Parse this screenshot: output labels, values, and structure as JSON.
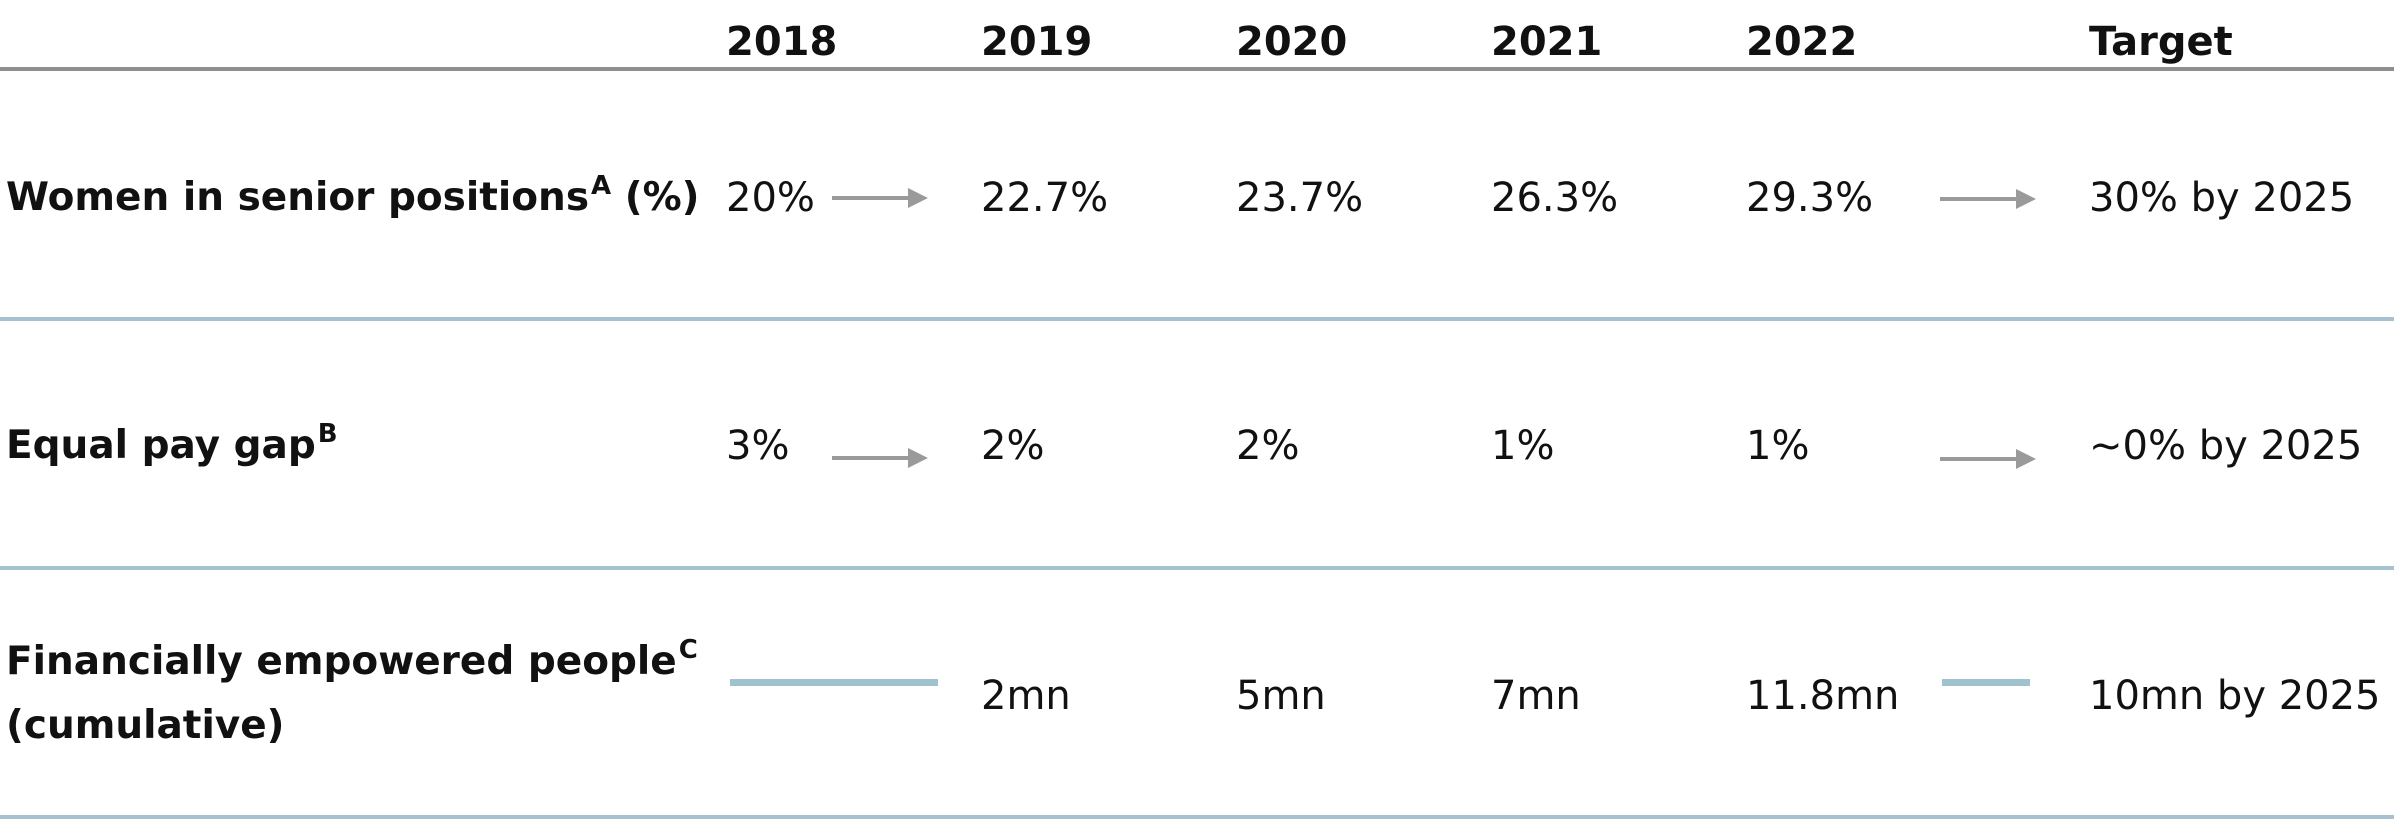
{
  "chart_data": {
    "type": "table",
    "columns": [
      "2018",
      "2019",
      "2020",
      "2021",
      "2022",
      "Target"
    ],
    "rows": [
      {
        "label": "Women in senior positions",
        "label_sup": "A",
        "label_suffix": " (%)",
        "label_line2": "",
        "values": [
          "20%",
          "22.7%",
          "23.7%",
          "26.3%",
          "29.3%"
        ],
        "target": "30% by 2025"
      },
      {
        "label": "Equal pay gap",
        "label_sup": "B",
        "label_suffix": "",
        "label_line2": "",
        "values": [
          "3%",
          "2%",
          "2%",
          "1%",
          "1%"
        ],
        "target": "~0% by 2025"
      },
      {
        "label": "Financially empowered people",
        "label_sup": "C",
        "label_suffix": "",
        "label_line2": "(cumulative)",
        "values": [
          "",
          "2mn",
          "5mn",
          "7mn",
          "11.8mn"
        ],
        "target": "10mn by 2025"
      }
    ],
    "colors": {
      "header_rule": "#8f8f8f",
      "row_rule": "#a4c3cf",
      "arrow": "#9a9a9a",
      "no_data_dash": "#9fc2cd"
    }
  }
}
